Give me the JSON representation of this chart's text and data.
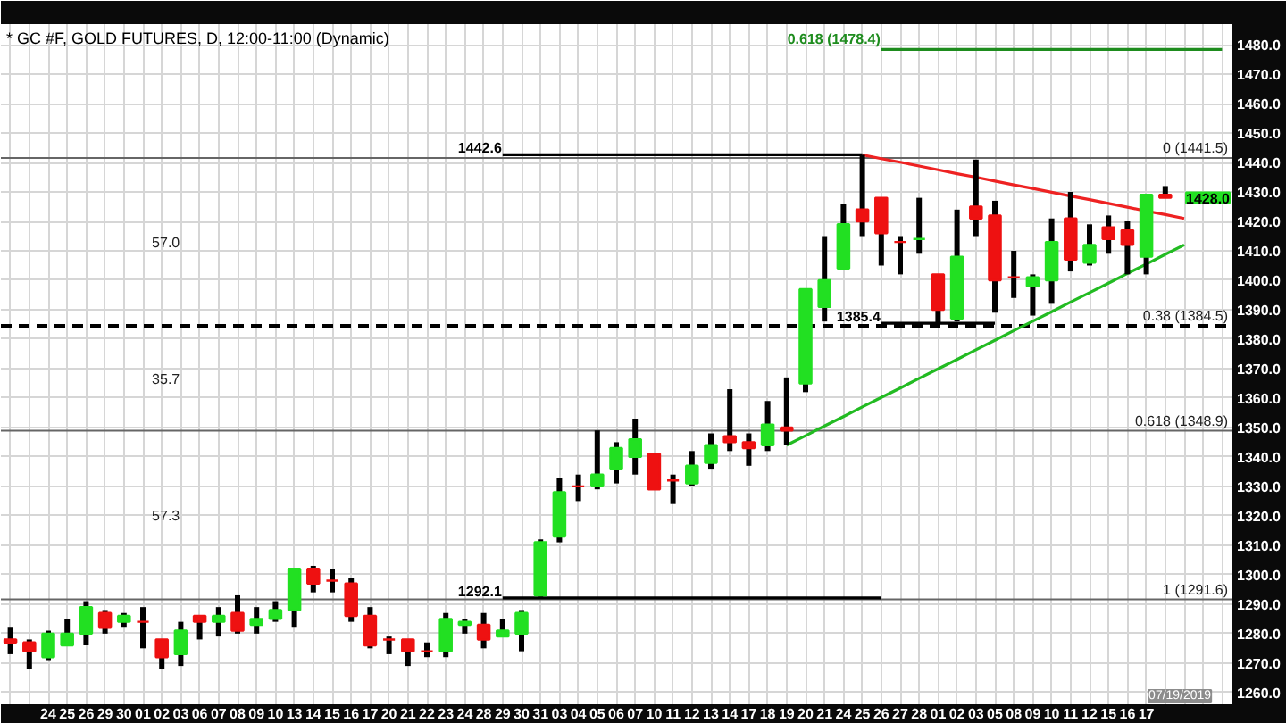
{
  "chart_data": {
    "type": "candlestick",
    "title": "* GC #F, GOLD FUTURES, D, 12:00-11:00 (Dynamic)",
    "categories": [
      null,
      null,
      "24",
      "25",
      "26",
      "29",
      "30",
      "01",
      "02",
      "03",
      "06",
      "07",
      "08",
      "09",
      "10",
      "13",
      "14",
      "15",
      "16",
      "17",
      "20",
      "21",
      "22",
      "23",
      "24",
      "28",
      "29",
      "30",
      "31",
      "03",
      "04",
      "05",
      "06",
      "07",
      "10",
      "11",
      "12",
      "13",
      "14",
      "17",
      "18",
      "19",
      "20",
      "21",
      "24",
      "25",
      "26",
      "27",
      "28",
      "01",
      "02",
      "03",
      "05",
      "08",
      "09",
      "10",
      "11",
      "12",
      "15",
      "16",
      "17",
      null,
      null,
      null,
      null
    ],
    "ohlc": [
      [
        1278,
        1282,
        1273,
        1277
      ],
      [
        1277,
        1278,
        1268,
        1274
      ],
      [
        1272,
        1281,
        1271,
        1280
      ],
      [
        1276,
        1285,
        1276,
        1280
      ],
      [
        1280,
        1291,
        1276,
        1289
      ],
      [
        1287,
        1288,
        1280,
        1282
      ],
      [
        1284,
        1287,
        1282,
        1286
      ],
      [
        1284,
        1289,
        1275,
        1284
      ],
      [
        1278,
        1278,
        1268,
        1272
      ],
      [
        1273,
        1284,
        1269,
        1281
      ],
      [
        1286,
        1286,
        1278,
        1284
      ],
      [
        1284,
        1289,
        1279,
        1286
      ],
      [
        1287,
        1293,
        1280,
        1281
      ],
      [
        1283,
        1289,
        1280,
        1285
      ],
      [
        1285,
        1291,
        1284,
        1288
      ],
      [
        1288,
        1302,
        1282,
        1302
      ],
      [
        1302,
        1303,
        1294,
        1297
      ],
      [
        1298,
        1302,
        1294,
        1298
      ],
      [
        1297,
        1299,
        1284,
        1286
      ],
      [
        1286,
        1289,
        1275,
        1276
      ],
      [
        1278,
        1279,
        1273,
        1278
      ],
      [
        1278,
        1278,
        1269,
        1274
      ],
      [
        1274,
        1277,
        1272,
        1274
      ],
      [
        1274,
        1287,
        1272,
        1285
      ],
      [
        1283,
        1285,
        1280,
        1284
      ],
      [
        1283,
        1287,
        1275,
        1278
      ],
      [
        1279,
        1285,
        1279,
        1281
      ],
      [
        1280,
        1288,
        1274,
        1287
      ],
      [
        1293,
        1312,
        1292.1,
        1311
      ],
      [
        1313,
        1333,
        1311,
        1328
      ],
      [
        1330,
        1334,
        1325,
        1330
      ],
      [
        1330,
        1349,
        1329,
        1334
      ],
      [
        1336,
        1345,
        1331,
        1343
      ],
      [
        1340,
        1353,
        1334,
        1346
      ],
      [
        1341,
        1341,
        1329,
        1329
      ],
      [
        1332,
        1334,
        1324,
        1332
      ],
      [
        1331,
        1342,
        1330,
        1337
      ],
      [
        1338,
        1348,
        1336,
        1344
      ],
      [
        1347,
        1363,
        1342,
        1345
      ],
      [
        1345,
        1348,
        1337,
        1343
      ],
      [
        1344,
        1359,
        1342,
        1351
      ],
      [
        1350,
        1367,
        1344,
        1349
      ],
      [
        1365,
        1397,
        1362,
        1397
      ],
      [
        1391,
        1415,
        1386,
        1400
      ],
      [
        1404,
        1426,
        1404,
        1419
      ],
      [
        1424,
        1442.6,
        1415,
        1420
      ],
      [
        1428,
        1428,
        1405,
        1416
      ],
      [
        1413,
        1415,
        1402,
        1413
      ],
      [
        1414,
        1428,
        1409,
        1414
      ],
      [
        1402,
        1402,
        1385.4,
        1390
      ],
      [
        1387,
        1424,
        1386,
        1408
      ],
      [
        1425,
        1441,
        1415,
        1421
      ],
      [
        1422,
        1427,
        1389,
        1400
      ],
      [
        1401,
        1410,
        1394,
        1401
      ],
      [
        1398,
        1402,
        1388,
        1401
      ],
      [
        1400,
        1421,
        1392,
        1413
      ],
      [
        1421,
        1430,
        1403,
        1407
      ],
      [
        1406,
        1419,
        1405,
        1412
      ],
      [
        1418,
        1422,
        1409,
        1414
      ],
      [
        1417,
        1420,
        1402,
        1412
      ],
      [
        1408,
        1429,
        1402,
        1429
      ],
      [
        1429,
        1432,
        1428,
        1428
      ],
      null,
      null,
      null
    ],
    "colors": [
      "#ee1111",
      "#ee1111",
      "#22e022",
      "#22e022",
      "#22e022",
      "#ee1111",
      "#22e022",
      "#ee1111",
      "#ee1111",
      "#22e022",
      "#ee1111",
      "#22e022",
      "#ee1111",
      "#22e022",
      "#22e022",
      "#22e022",
      "#ee1111",
      "#ee1111",
      "#ee1111",
      "#ee1111",
      "#ee1111",
      "#ee1111",
      "#ee1111",
      "#22e022",
      "#22e022",
      "#ee1111",
      "#22e022",
      "#22e022",
      "#22e022",
      "#22e022",
      "#ee1111",
      "#22e022",
      "#22e022",
      "#22e022",
      "#ee1111",
      "#ee1111",
      "#22e022",
      "#22e022",
      "#ee1111",
      "#ee1111",
      "#22e022",
      "#ee1111",
      "#22e022",
      "#22e022",
      "#22e022",
      "#ee1111",
      "#ee1111",
      "#ee1111",
      "#22e022",
      "#ee1111",
      "#22e022",
      "#ee1111",
      "#ee1111",
      "#ee1111",
      "#22e022",
      "#22e022",
      "#ee1111",
      "#22e022",
      "#ee1111",
      "#ee1111",
      "#22e022",
      "#ee1111",
      null,
      null,
      null
    ],
    "color": "#000000",
    "ylim": [
      1256,
      1487
    ],
    "yticks": [
      {
        "value": 1260,
        "label": "1260.0"
      },
      {
        "value": 1270,
        "label": "1270.0"
      },
      {
        "value": 1280,
        "label": "1280.0"
      },
      {
        "value": 1290,
        "label": "1290.0"
      },
      {
        "value": 1300,
        "label": "1300.0"
      },
      {
        "value": 1310,
        "label": "1310.0"
      },
      {
        "value": 1320,
        "label": "1320.0"
      },
      {
        "value": 1330,
        "label": "1330.0"
      },
      {
        "value": 1340,
        "label": "1340.0"
      },
      {
        "value": 1350,
        "label": "1350.0"
      },
      {
        "value": 1360,
        "label": "1360.0"
      },
      {
        "value": 1370,
        "label": "1370.0"
      },
      {
        "value": 1380,
        "label": "1380.0"
      },
      {
        "value": 1390,
        "label": "1390.0"
      },
      {
        "value": 1400,
        "label": "1400.0"
      },
      {
        "value": 1410,
        "label": "1410.0"
      },
      {
        "value": 1420,
        "label": "1420.0"
      },
      {
        "value": 1430,
        "label": "1430.0"
      },
      {
        "value": 1440,
        "label": "1440.0"
      },
      {
        "value": 1450,
        "label": "1450.0"
      },
      {
        "value": 1460,
        "label": "1460.0"
      },
      {
        "value": 1470,
        "label": "1470.0"
      },
      {
        "value": 1480,
        "label": "1480.0"
      }
    ],
    "grid": true,
    "ref_lines": [
      {
        "axis": "y",
        "value": 1441.5,
        "label": "0 (1441.5)",
        "color": "#666666",
        "line_style": "solid"
      },
      {
        "axis": "y",
        "value": 1384.5,
        "label": "0.38 (1384.5)",
        "color": "#000000",
        "line_style": "dashed"
      },
      {
        "axis": "y",
        "value": 1348.9,
        "label": "0.618 (1348.9)",
        "color": "#666666",
        "line_style": "solid"
      },
      {
        "axis": "y",
        "value": 1291.6,
        "label": "1 (1291.6)",
        "color": "#666666",
        "line_style": "solid"
      }
    ],
    "series": [
      {
        "type": "line",
        "color": "#000000",
        "values": [
          null,
          null,
          null,
          null,
          null,
          null,
          null,
          null,
          null,
          null,
          null,
          null,
          null,
          null,
          null,
          null,
          null,
          null,
          null,
          null,
          null,
          null,
          null,
          null,
          null,
          null,
          1442.6,
          1442.6,
          1442.6,
          1442.6,
          1442.6,
          1442.6,
          1442.6,
          1442.6,
          1442.6,
          1442.6,
          1442.6,
          1442.6,
          1442.6,
          1442.6,
          1442.6,
          1442.6,
          1442.6,
          1442.6,
          1442.6,
          1442.6,
          null,
          null,
          null,
          null,
          null,
          null,
          null,
          null,
          null,
          null,
          null,
          null,
          null,
          null,
          null,
          null,
          null,
          null,
          null
        ],
        "value_labels": [
          null,
          null,
          null,
          null,
          null,
          null,
          null,
          null,
          null,
          null,
          null,
          null,
          null,
          null,
          null,
          null,
          null,
          null,
          null,
          null,
          null,
          null,
          null,
          null,
          null,
          null,
          "1442.6",
          null,
          null,
          null,
          null,
          null,
          null,
          null,
          null,
          null,
          null,
          null,
          null,
          null,
          null,
          null,
          null,
          null,
          null,
          null,
          null,
          null,
          null,
          null,
          null,
          null,
          null,
          null,
          null,
          null,
          null,
          null,
          null,
          null,
          null,
          null,
          null,
          null,
          null
        ]
      },
      {
        "type": "line",
        "color": "#000000",
        "values": [
          null,
          null,
          null,
          null,
          null,
          null,
          null,
          null,
          null,
          null,
          null,
          null,
          null,
          null,
          null,
          null,
          null,
          null,
          null,
          null,
          null,
          null,
          null,
          null,
          null,
          null,
          1292.1,
          1292.1,
          1292.1,
          1292.1,
          1292.1,
          1292.1,
          1292.1,
          1292.1,
          1292.1,
          1292.1,
          1292.1,
          1292.1,
          1292.1,
          1292.1,
          1292.1,
          1292.1,
          1292.1,
          1292.1,
          1292.1,
          1292.1,
          1292.1,
          null,
          null,
          null,
          null,
          null,
          null,
          null,
          null,
          null,
          null,
          null,
          null,
          null,
          null,
          null,
          null,
          null,
          null
        ],
        "value_labels": [
          null,
          null,
          null,
          null,
          null,
          null,
          null,
          null,
          null,
          null,
          null,
          null,
          null,
          null,
          null,
          null,
          null,
          null,
          null,
          null,
          null,
          null,
          null,
          null,
          null,
          null,
          "1292.1",
          null,
          null,
          null,
          null,
          null,
          null,
          null,
          null,
          null,
          null,
          null,
          null,
          null,
          null,
          null,
          null,
          null,
          null,
          null,
          null,
          null,
          null,
          null,
          null,
          null,
          null,
          null,
          null,
          null,
          null,
          null,
          null,
          null,
          null,
          null,
          null,
          null,
          null
        ]
      },
      {
        "type": "line",
        "color": "#000000",
        "values": [
          null,
          null,
          null,
          null,
          null,
          null,
          null,
          null,
          null,
          null,
          null,
          null,
          null,
          null,
          null,
          null,
          null,
          null,
          null,
          null,
          null,
          null,
          null,
          null,
          null,
          null,
          null,
          null,
          null,
          null,
          null,
          null,
          null,
          null,
          null,
          null,
          null,
          null,
          null,
          null,
          null,
          null,
          null,
          null,
          null,
          null,
          1385.4,
          1385.4,
          1385.4,
          1385.4,
          1385.4,
          1385.4,
          1385.4,
          null,
          null,
          null,
          null,
          null,
          null,
          null,
          null,
          null,
          null,
          null,
          null
        ],
        "value_labels": [
          null,
          null,
          null,
          null,
          null,
          null,
          null,
          null,
          null,
          null,
          null,
          null,
          null,
          null,
          null,
          null,
          null,
          null,
          null,
          null,
          null,
          null,
          null,
          null,
          null,
          null,
          null,
          null,
          null,
          null,
          null,
          null,
          null,
          null,
          null,
          null,
          null,
          null,
          null,
          null,
          null,
          null,
          null,
          null,
          null,
          null,
          "1385.4",
          null,
          null,
          null,
          null,
          null,
          null,
          null,
          null,
          null,
          null,
          null,
          null,
          null,
          null,
          null,
          null,
          null,
          null
        ]
      },
      {
        "type": "line",
        "color": "#1e8c1e",
        "values": [
          null,
          null,
          null,
          null,
          null,
          null,
          null,
          null,
          null,
          null,
          null,
          null,
          null,
          null,
          null,
          null,
          null,
          null,
          null,
          null,
          null,
          null,
          null,
          null,
          null,
          null,
          null,
          null,
          null,
          null,
          null,
          null,
          null,
          null,
          null,
          null,
          null,
          null,
          null,
          null,
          null,
          null,
          null,
          null,
          null,
          null,
          1478.4,
          1478.4,
          1478.4,
          1478.4,
          1478.4,
          1478.4,
          1478.4,
          1478.4,
          1478.4,
          1478.4,
          1478.4,
          1478.4,
          1478.4,
          1478.4,
          1478.4,
          1478.4,
          1478.4,
          1478.4,
          1478.4
        ],
        "value_labels": [
          null,
          null,
          null,
          null,
          null,
          null,
          null,
          null,
          null,
          null,
          null,
          null,
          null,
          null,
          null,
          null,
          null,
          null,
          null,
          null,
          null,
          null,
          null,
          null,
          null,
          null,
          null,
          null,
          null,
          null,
          null,
          null,
          null,
          null,
          null,
          null,
          null,
          null,
          null,
          null,
          null,
          null,
          null,
          null,
          null,
          null,
          "0.618 (1478.4)",
          null,
          null,
          null,
          null,
          null,
          null,
          null,
          null,
          null,
          null,
          null,
          null,
          null,
          null,
          null,
          null,
          null,
          null
        ]
      },
      {
        "type": "line",
        "color": "#ee2222",
        "values": [
          null,
          null,
          null,
          null,
          null,
          null,
          null,
          null,
          null,
          null,
          null,
          null,
          null,
          null,
          null,
          null,
          null,
          null,
          null,
          null,
          null,
          null,
          null,
          null,
          null,
          null,
          null,
          null,
          null,
          null,
          null,
          null,
          null,
          null,
          null,
          null,
          null,
          null,
          null,
          null,
          null,
          null,
          null,
          null,
          null,
          1442.6,
          1441.3,
          1440.1,
          1438.8,
          1437.5,
          1436.2,
          1435.0,
          1433.7,
          1432.4,
          1431.2,
          1429.9,
          1428.6,
          1427.4,
          1426.1,
          1424.8,
          1423.5,
          1422.3,
          1421.0,
          null,
          null
        ]
      },
      {
        "type": "line",
        "color": "#22bb22",
        "values": [
          null,
          null,
          null,
          null,
          null,
          null,
          null,
          null,
          null,
          null,
          null,
          null,
          null,
          null,
          null,
          null,
          null,
          null,
          null,
          null,
          null,
          null,
          null,
          null,
          null,
          null,
          null,
          null,
          null,
          null,
          null,
          null,
          null,
          null,
          null,
          null,
          null,
          null,
          null,
          null,
          null,
          1344.0,
          1347.2,
          1350.5,
          1353.7,
          1357.0,
          1360.2,
          1363.4,
          1366.7,
          1369.9,
          1373.1,
          1376.4,
          1379.6,
          1382.9,
          1386.1,
          1389.3,
          1392.6,
          1395.8,
          1399.0,
          1402.3,
          1405.5,
          1408.8,
          1412.0,
          null,
          null
        ]
      }
    ],
    "annotations": [
      "57.0",
      "35.7",
      "57.3",
      "1428.0",
      "07/19/2019"
    ]
  }
}
